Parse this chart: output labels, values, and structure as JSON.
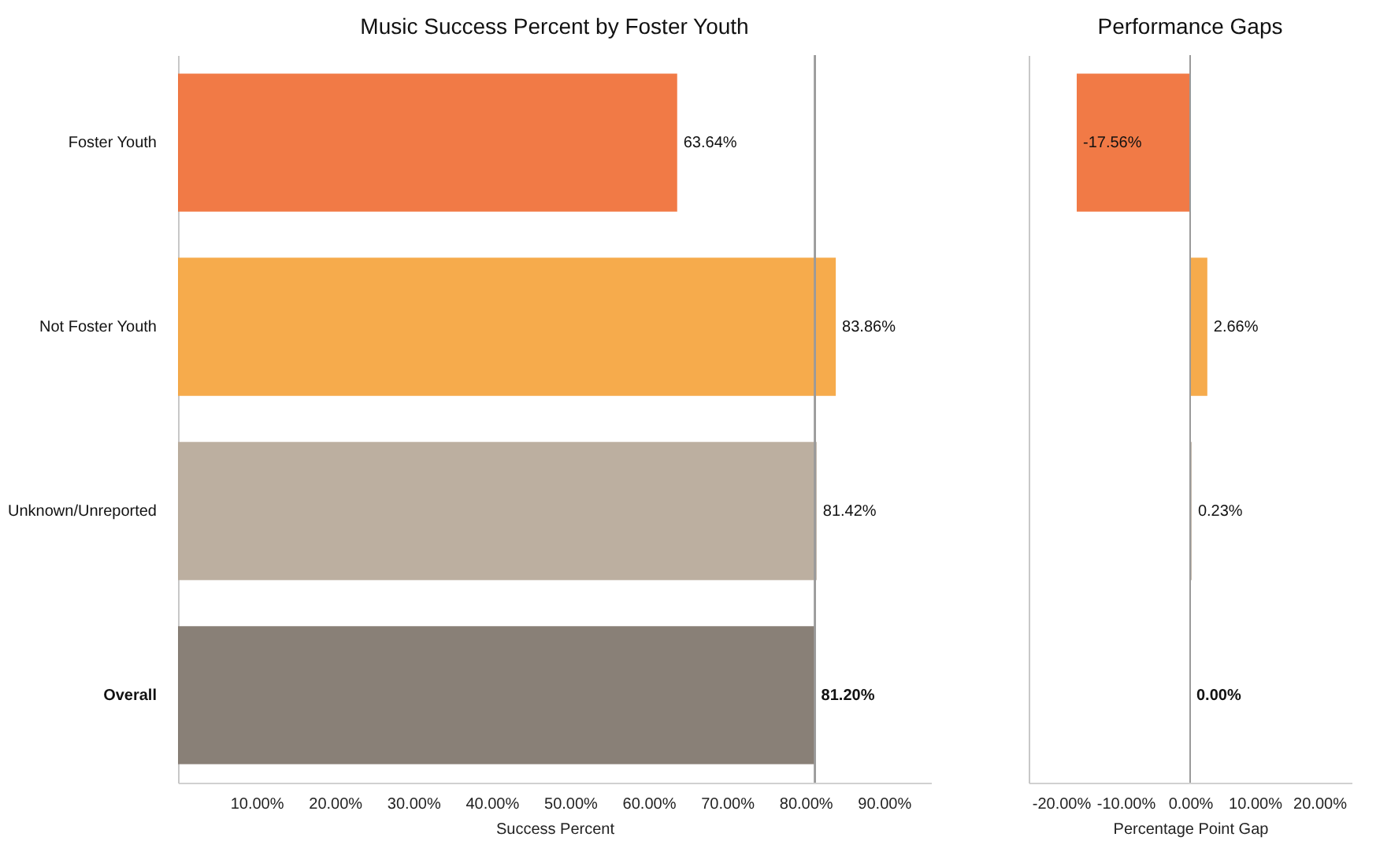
{
  "chart_data": [
    {
      "type": "bar",
      "orientation": "horizontal",
      "title": "Music Success Percent by Foster Youth",
      "xlabel": "Success Percent",
      "categories": [
        "Foster Youth",
        "Not Foster Youth",
        "Unknown/Unreported",
        "Overall"
      ],
      "values": [
        63.64,
        83.86,
        81.42,
        81.2
      ],
      "value_labels": [
        "63.64%",
        "83.86%",
        "81.42%",
        "81.20%"
      ],
      "colors": [
        "#f0733c",
        "#f5a742",
        "#b8ab9b",
        "#837970"
      ],
      "xlim": [
        0,
        96
      ],
      "xticks": [
        {
          "value": 10,
          "label": "10.00%"
        },
        {
          "value": 20,
          "label": "20.00%"
        },
        {
          "value": 30,
          "label": "30.00%"
        },
        {
          "value": 40,
          "label": "40.00%"
        },
        {
          "value": 50,
          "label": "50.00%"
        },
        {
          "value": 60,
          "label": "60.00%"
        },
        {
          "value": 70,
          "label": "70.00%"
        },
        {
          "value": 80,
          "label": "80.00%"
        },
        {
          "value": 90,
          "label": "90.00%"
        }
      ],
      "ref_lines": [
        {
          "axis": "x",
          "value": 81.2,
          "color": "#9a9a9a"
        }
      ]
    },
    {
      "type": "bar",
      "orientation": "horizontal",
      "title": "Performance Gaps",
      "xlabel": "Percentage Point Gap",
      "categories": [
        null,
        null,
        null,
        null
      ],
      "values": [
        -17.56,
        2.66,
        0.23,
        0.0
      ],
      "value_labels": [
        "-17.56%",
        "2.66%",
        "0.23%",
        "0.00%"
      ],
      "colors": [
        "#f0733c",
        "#f5a742",
        "#b8ab9b",
        "#837970"
      ],
      "xlim": [
        -25,
        25
      ],
      "xticks": [
        {
          "value": -20,
          "label": "-20.00%"
        },
        {
          "value": -10,
          "label": "-10.00%"
        },
        {
          "value": 0,
          "label": "0.00%"
        },
        {
          "value": 10,
          "label": "10.00%"
        },
        {
          "value": 20,
          "label": "20.00%"
        }
      ],
      "ref_lines": [
        {
          "axis": "x",
          "value": 0,
          "color": "#9a9a9a"
        }
      ]
    }
  ]
}
